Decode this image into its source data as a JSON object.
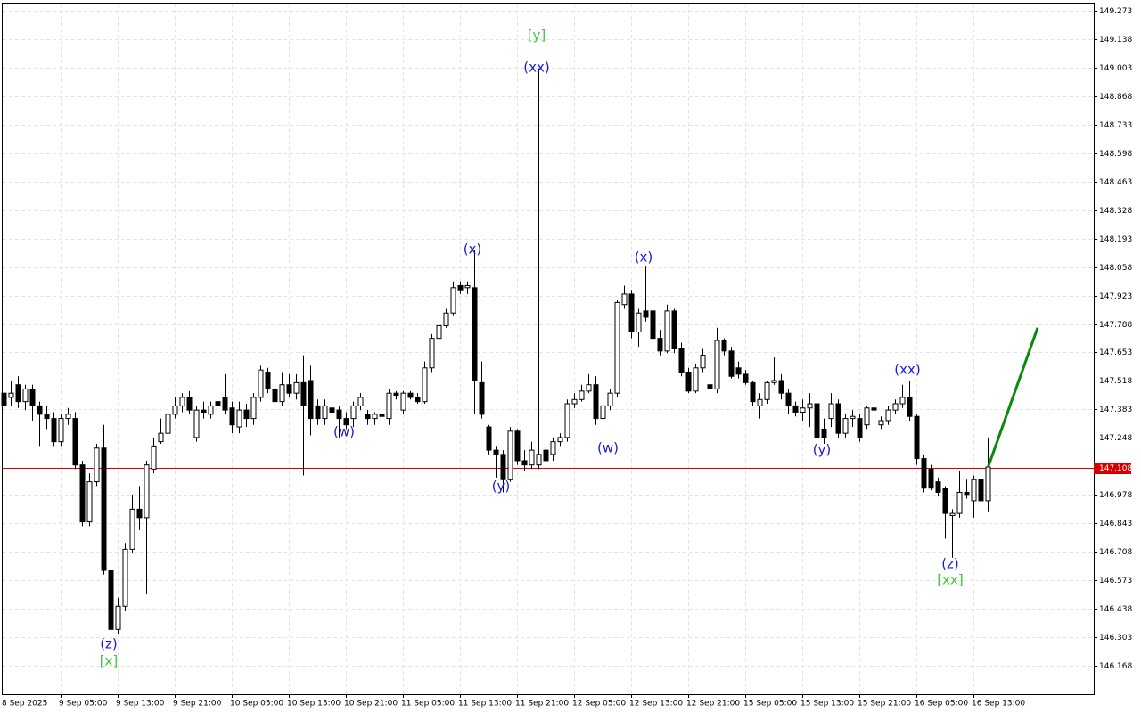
{
  "chart_data": {
    "type": "candlestick",
    "categories": [
      "8 Sep 2025",
      null,
      null,
      null,
      null,
      null,
      null,
      null,
      "9 Sep 05:00",
      null,
      null,
      null,
      null,
      null,
      null,
      null,
      "9 Sep 13:00",
      null,
      null,
      null,
      null,
      null,
      null,
      null,
      "9 Sep 21:00",
      null,
      null,
      null,
      null,
      null,
      null,
      null,
      "10 Sep 05:00",
      null,
      null,
      null,
      null,
      null,
      null,
      null,
      "10 Sep 13:00",
      null,
      null,
      null,
      null,
      null,
      null,
      null,
      "10 Sep 21:00",
      null,
      null,
      null,
      null,
      null,
      null,
      null,
      "11 Sep 05:00",
      null,
      null,
      null,
      null,
      null,
      null,
      null,
      "11 Sep 13:00",
      null,
      null,
      null,
      null,
      null,
      null,
      null,
      "11 Sep 21:00",
      null,
      null,
      null,
      null,
      null,
      null,
      null,
      "12 Sep 05:00",
      null,
      null,
      null,
      null,
      null,
      null,
      null,
      "12 Sep 13:00",
      null,
      null,
      null,
      null,
      null,
      null,
      null,
      "12 Sep 21:00",
      null,
      null,
      null,
      null,
      null,
      null,
      null,
      "15 Sep 05:00",
      null,
      null,
      null,
      null,
      null,
      null,
      null,
      "15 Sep 13:00",
      null,
      null,
      null,
      null,
      null,
      null,
      null,
      "15 Sep 21:00",
      null,
      null,
      null,
      null,
      null,
      null,
      null,
      "16 Sep 05:00",
      null,
      null,
      null,
      null,
      null,
      null,
      null,
      "16 Sep 13:00",
      null,
      null
    ],
    "open": [
      147.46,
      147.44,
      147.5,
      147.42,
      147.48,
      147.4,
      147.36,
      147.34,
      147.23,
      147.34,
      147.34,
      147.12,
      146.85,
      147.04,
      147.2,
      146.62,
      146.34,
      146.45,
      146.72,
      146.91,
      146.87,
      147.1,
      147.23,
      147.27,
      147.36,
      147.4,
      147.44,
      147.25,
      147.38,
      147.36,
      147.42,
      147.44,
      147.39,
      147.3,
      147.38,
      147.34,
      147.44,
      147.56,
      147.48,
      147.42,
      147.5,
      147.46,
      147.51,
      147.52,
      147.4,
      147.34,
      147.39,
      147.38,
      147.34,
      147.34,
      147.4,
      147.36,
      147.34,
      147.36,
      147.34,
      147.46,
      147.38,
      147.46,
      147.44,
      147.42,
      147.58,
      147.72,
      147.78,
      147.84,
      147.97,
      147.96,
      147.96,
      147.51,
      147.3,
      147.19,
      147.17,
      147.05,
      147.28,
      147.14,
      147.12,
      147.12,
      147.19,
      147.17,
      147.23,
      147.25,
      147.41,
      147.43,
      147.47,
      147.5,
      147.34,
      147.4,
      147.46,
      147.88,
      147.93,
      147.75,
      147.85,
      147.85,
      147.72,
      147.66,
      147.85,
      147.67,
      147.56,
      147.47,
      147.58,
      147.5,
      147.48,
      147.71,
      147.66,
      147.58,
      147.55,
      147.51,
      147.4,
      147.43,
      147.51,
      147.52,
      147.46,
      147.4,
      147.37,
      147.39,
      147.41,
      147.29,
      147.34,
      147.41,
      147.27,
      147.34,
      147.34,
      147.31,
      147.39,
      147.31,
      147.33,
      147.38,
      147.41,
      147.44,
      147.35,
      147.15,
      147.1,
      147.04,
      147.01,
      146.88,
      146.89,
      146.99,
      146.95,
      147.05,
      146.95
    ],
    "high": [
      147.72,
      147.52,
      147.54,
      147.5,
      147.5,
      147.42,
      147.4,
      147.37,
      147.36,
      147.39,
      147.37,
      147.14,
      147.08,
      147.22,
      147.31,
      146.66,
      146.49,
      146.75,
      146.98,
      147.02,
      147.14,
      147.25,
      147.34,
      147.38,
      147.44,
      147.46,
      147.47,
      147.4,
      147.42,
      147.42,
      147.47,
      147.55,
      147.42,
      147.42,
      147.41,
      147.46,
      147.59,
      147.58,
      147.51,
      147.56,
      147.55,
      147.55,
      147.64,
      147.59,
      147.43,
      147.43,
      147.41,
      147.4,
      147.37,
      147.42,
      147.46,
      147.38,
      147.37,
      147.39,
      147.48,
      147.47,
      147.47,
      147.47,
      147.46,
      147.61,
      147.74,
      147.8,
      147.86,
      147.99,
      147.99,
      147.99,
      148.14,
      147.61,
      147.31,
      147.21,
      147.19,
      147.3,
      147.29,
      147.19,
      147.23,
      149.0,
      147.21,
      147.25,
      147.27,
      147.43,
      147.46,
      147.5,
      147.55,
      147.54,
      147.42,
      147.48,
      147.9,
      147.97,
      147.95,
      147.86,
      148.06,
      147.86,
      147.76,
      147.88,
      147.86,
      147.7,
      147.58,
      147.6,
      147.67,
      147.52,
      147.77,
      147.72,
      147.68,
      147.61,
      147.57,
      147.52,
      147.46,
      147.52,
      147.63,
      147.55,
      147.48,
      147.42,
      147.43,
      147.46,
      147.42,
      147.34,
      147.46,
      147.43,
      147.36,
      147.38,
      147.36,
      147.4,
      147.42,
      147.35,
      147.4,
      147.43,
      147.5,
      147.52,
      147.36,
      147.17,
      147.12,
      147.06,
      147.02,
      146.91,
      147.09,
      147.05,
      147.07,
      147.08,
      147.25
    ],
    "low": [
      147.33,
      147.4,
      147.39,
      147.38,
      147.33,
      147.21,
      147.29,
      147.21,
      147.21,
      147.31,
      147.1,
      146.83,
      146.83,
      147.02,
      146.6,
      146.3,
      146.32,
      146.43,
      146.7,
      146.81,
      146.51,
      147.08,
      147.22,
      147.25,
      147.34,
      147.37,
      147.36,
      147.23,
      147.34,
      147.34,
      147.38,
      147.36,
      147.27,
      147.27,
      147.3,
      147.31,
      147.42,
      147.46,
      147.4,
      147.4,
      147.44,
      147.43,
      147.07,
      147.26,
      147.31,
      147.31,
      147.3,
      147.25,
      147.29,
      147.3,
      147.38,
      147.31,
      147.31,
      147.33,
      147.31,
      147.43,
      147.36,
      147.43,
      147.41,
      147.41,
      147.56,
      147.69,
      147.77,
      147.83,
      147.93,
      147.93,
      147.36,
      147.34,
      147.17,
      147.06,
      146.99,
      147.04,
      147.12,
      147.09,
      147.1,
      147.1,
      147.13,
      147.14,
      147.21,
      147.23,
      147.39,
      147.42,
      147.46,
      147.31,
      147.25,
      147.38,
      147.44,
      147.86,
      147.72,
      147.68,
      147.8,
      147.69,
      147.64,
      147.65,
      147.65,
      147.54,
      147.46,
      147.46,
      147.56,
      147.47,
      147.46,
      147.64,
      147.53,
      147.53,
      147.5,
      147.4,
      147.34,
      147.41,
      147.5,
      147.43,
      147.36,
      147.35,
      147.33,
      147.3,
      147.23,
      147.22,
      147.3,
      147.25,
      147.25,
      147.3,
      147.23,
      147.29,
      147.36,
      147.29,
      147.31,
      147.36,
      147.39,
      147.33,
      147.12,
      146.99,
      147.0,
      146.97,
      146.77,
      146.68,
      146.87,
      146.96,
      146.87,
      146.92,
      146.9
    ],
    "close": [
      147.4,
      147.46,
      147.42,
      147.48,
      147.4,
      147.36,
      147.34,
      147.23,
      147.34,
      147.36,
      147.12,
      146.85,
      147.04,
      147.2,
      146.62,
      146.34,
      146.45,
      146.72,
      146.91,
      146.87,
      147.12,
      147.21,
      147.27,
      147.36,
      147.4,
      147.44,
      147.38,
      147.38,
      147.37,
      147.4,
      147.4,
      147.38,
      147.31,
      147.38,
      147.34,
      147.44,
      147.57,
      147.48,
      147.42,
      147.5,
      147.46,
      147.51,
      147.4,
      147.34,
      147.34,
      147.4,
      147.37,
      147.34,
      147.31,
      147.4,
      147.44,
      147.34,
      147.36,
      147.35,
      147.46,
      147.45,
      147.46,
      147.44,
      147.42,
      147.58,
      147.72,
      147.78,
      147.84,
      147.96,
      147.95,
      147.97,
      147.52,
      147.36,
      147.19,
      147.17,
      147.05,
      147.28,
      147.14,
      147.12,
      147.19,
      147.17,
      147.14,
      147.23,
      147.25,
      147.41,
      147.43,
      147.47,
      147.5,
      147.34,
      147.4,
      147.46,
      147.89,
      147.93,
      147.75,
      147.84,
      147.82,
      147.72,
      147.66,
      147.85,
      147.67,
      147.56,
      147.47,
      147.58,
      147.64,
      147.48,
      147.71,
      147.66,
      147.54,
      147.55,
      147.51,
      147.42,
      147.43,
      147.51,
      147.52,
      147.46,
      147.4,
      147.37,
      147.39,
      147.41,
      147.25,
      147.25,
      147.41,
      147.27,
      147.34,
      147.35,
      147.25,
      147.39,
      147.38,
      147.33,
      147.38,
      147.41,
      147.44,
      147.35,
      147.15,
      147.01,
      147.01,
      146.99,
      146.89,
      146.89,
      146.99,
      146.98,
      147.05,
      146.95,
      147.11
    ],
    "up_color": "#ffffff",
    "down_color": "#000000",
    "ylim": [
      146.033,
      149.311
    ],
    "yticks": [
      149.273,
      149.138,
      149.003,
      148.868,
      148.733,
      148.598,
      148.463,
      148.328,
      148.193,
      148.058,
      147.923,
      147.788,
      147.653,
      147.518,
      147.383,
      147.248,
      146.978,
      146.843,
      146.708,
      146.573,
      146.438,
      146.303,
      146.168
    ],
    "grid": true,
    "price_line": {
      "value": 147.108,
      "color": "#d40000"
    },
    "projection": {
      "color": "#0a8a0a",
      "values": [
        147.11,
        147.77
      ]
    },
    "annotations": [
      {
        "text": "[y]",
        "color": "#3cc83c"
      },
      {
        "text": "(xx)",
        "color": "#1a1ad6"
      },
      {
        "text": "(x)",
        "color": "#1a1ad6"
      },
      {
        "text": "(x)",
        "color": "#1a1ad6"
      },
      {
        "text": "(xx)",
        "color": "#1a1ad6"
      },
      {
        "text": "(w)",
        "color": "#1a1ad6"
      },
      {
        "text": "(w)",
        "color": "#1a1ad6"
      },
      {
        "text": "(y)",
        "color": "#1a1ad6"
      },
      {
        "text": "(y)",
        "color": "#1a1ad6"
      },
      {
        "text": "(z)",
        "color": "#1a1ad6"
      },
      {
        "text": "[xx]",
        "color": "#3cc83c"
      },
      {
        "text": "(z)",
        "color": "#1a1ad6"
      },
      {
        "text": "[x]",
        "color": "#3cc83c"
      }
    ]
  }
}
